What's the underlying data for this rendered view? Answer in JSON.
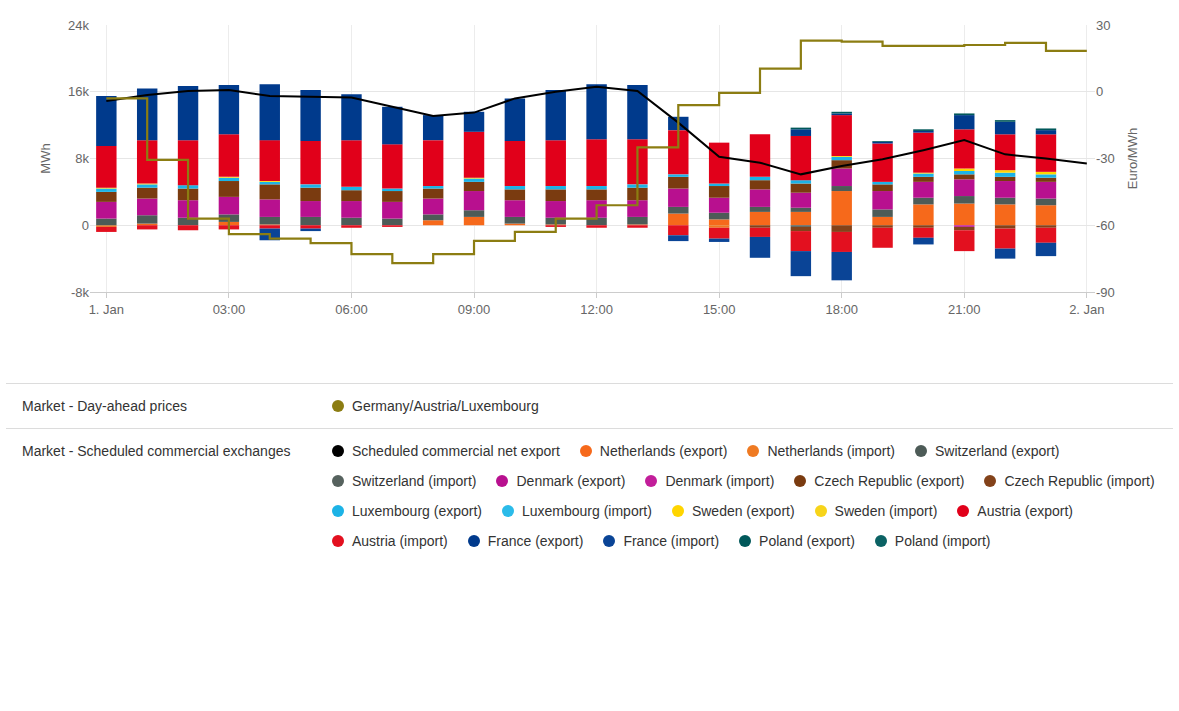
{
  "chart_data": {
    "type": "bar",
    "stacked": true,
    "grid": true,
    "legend": "bottom",
    "y_label": "MWh",
    "y2_label": "Euro/MWh",
    "x": [
      0,
      1,
      2,
      3,
      4,
      5,
      6,
      7,
      8,
      9,
      10,
      11,
      12,
      13,
      14,
      15,
      16,
      17,
      18,
      19,
      20,
      21,
      22,
      23
    ],
    "xlim": [
      -0.4,
      24.2
    ],
    "xticks": [
      {
        "value": 0,
        "label": "1. Jan"
      },
      {
        "value": 3,
        "label": "03:00"
      },
      {
        "value": 6,
        "label": "06:00"
      },
      {
        "value": 9,
        "label": "09:00"
      },
      {
        "value": 12,
        "label": "12:00"
      },
      {
        "value": 15,
        "label": "15:00"
      },
      {
        "value": 18,
        "label": "18:00"
      },
      {
        "value": 21,
        "label": "21:00"
      },
      {
        "value": 24,
        "label": "2. Jan"
      }
    ],
    "ylim": [
      -8000,
      24000
    ],
    "yticks": [
      {
        "value": -8000,
        "label": "-8k"
      },
      0,
      {
        "value": 8000,
        "label": "8k"
      },
      {
        "value": 16000,
        "label": "16k"
      },
      {
        "value": 24000,
        "label": "24k"
      }
    ],
    "y2lim": [
      -90,
      30
    ],
    "y2ticks": [
      -90,
      -60,
      -30,
      0,
      30
    ],
    "series": [
      {
        "name": "Germany/Austria/Luxembourg",
        "group": "Market - Day-ahead prices",
        "type": "line",
        "line_style": "step",
        "axis": "y2",
        "color": "#8c7d12",
        "bins": [
          0,
          1,
          2,
          3,
          4,
          5,
          6,
          7,
          8,
          9,
          10,
          11,
          12,
          13,
          14,
          15,
          16,
          17,
          18,
          19,
          20,
          21,
          22,
          23,
          24
        ],
        "values": [
          -3,
          -30.6,
          -57,
          -64,
          -66,
          -68,
          -73,
          -77,
          -73,
          -67,
          -63,
          -57,
          -51,
          -25,
          -6,
          -0.5,
          10.4,
          23,
          22.5,
          20.6,
          20.6,
          21,
          22,
          18.4
        ]
      },
      {
        "name": "Scheduled commercial net export",
        "group": "Market - Scheduled commercial exchanges",
        "type": "line",
        "line_style": "solid",
        "color": "#000000",
        "x": [
          0,
          1,
          2,
          3,
          4,
          5,
          6,
          7,
          8,
          9,
          10,
          11,
          12,
          13,
          14,
          15,
          16,
          17,
          18,
          19,
          20,
          21,
          22,
          23,
          24
        ],
        "values": [
          14900,
          15600,
          16100,
          16200,
          15500,
          15400,
          15300,
          14200,
          13100,
          13500,
          15200,
          16000,
          16600,
          16100,
          12300,
          8200,
          7500,
          6100,
          7100,
          7900,
          9000,
          10200,
          8500,
          8000,
          7400
        ]
      },
      {
        "name": "Netherlands (export)",
        "group": "Market - Scheduled commercial exchanges",
        "type": "bar",
        "color": "#f6691b",
        "values": [
          0,
          200,
          0,
          400,
          100,
          0,
          0,
          0,
          600,
          1000,
          200,
          100,
          0,
          100,
          1400,
          700,
          1600,
          1600,
          4100,
          1000,
          2500,
          2600,
          2500,
          2400
        ]
      },
      {
        "name": "Netherlands (import)",
        "group": "Market - Scheduled commercial exchanges",
        "type": "bar",
        "color": "#ef7a22",
        "values": [
          -200,
          0,
          0,
          0,
          0,
          0,
          0,
          0,
          0,
          0,
          0,
          0,
          0,
          0,
          0,
          -300,
          0,
          0,
          0,
          0,
          0,
          0,
          0,
          0
        ]
      },
      {
        "name": "Switzerland (export)",
        "group": "Market - Scheduled commercial exchanges",
        "type": "bar",
        "color": "#4d5b57",
        "values": [
          800,
          1000,
          900,
          900,
          900,
          1000,
          900,
          800,
          700,
          800,
          800,
          800,
          900,
          900,
          800,
          800,
          600,
          500,
          600,
          900,
          800,
          900,
          800,
          800
        ]
      },
      {
        "name": "Switzerland (import)",
        "group": "Market - Scheduled commercial exchanges",
        "type": "bar",
        "color": "#56625e",
        "values": [
          0,
          0,
          0,
          0,
          0,
          0,
          0,
          0,
          0,
          0,
          0,
          0,
          0,
          0,
          0,
          0,
          0,
          -200,
          0,
          0,
          0,
          0,
          0,
          0
        ]
      },
      {
        "name": "Denmark (export)",
        "group": "Market - Scheduled commercial exchanges",
        "type": "bar",
        "color": "#b8108f",
        "values": [
          2000,
          2000,
          2100,
          2100,
          2100,
          1900,
          2000,
          2000,
          1900,
          2300,
          2000,
          2000,
          2100,
          2000,
          2200,
          1800,
          2100,
          1800,
          2100,
          2200,
          1900,
          2000,
          2000,
          2000
        ]
      },
      {
        "name": "Denmark (import)",
        "group": "Market - Scheduled commercial exchanges",
        "type": "bar",
        "color": "#c21e9a",
        "values": [
          0,
          0,
          0,
          0,
          0,
          0,
          0,
          0,
          0,
          0,
          0,
          0,
          0,
          0,
          0,
          0,
          0,
          0,
          0,
          0,
          0,
          -200,
          0,
          0
        ]
      },
      {
        "name": "Czech Republic (export)",
        "group": "Market - Scheduled commercial exchanges",
        "type": "bar",
        "color": "#7a3b10",
        "values": [
          1200,
          1300,
          1400,
          1900,
          1800,
          1600,
          1300,
          1300,
          1200,
          1100,
          1300,
          1400,
          1300,
          1500,
          1400,
          1400,
          1100,
          1100,
          1000,
          800,
          600,
          600,
          500,
          500
        ]
      },
      {
        "name": "Czech Republic (import)",
        "group": "Market - Scheduled commercial exchanges",
        "type": "bar",
        "color": "#83421a",
        "values": [
          0,
          0,
          0,
          0,
          0,
          0,
          0,
          0,
          0,
          0,
          0,
          0,
          0,
          0,
          0,
          0,
          -300,
          -500,
          -800,
          -300,
          -300,
          -400,
          -400,
          -300
        ]
      },
      {
        "name": "Luxembourg (export)",
        "group": "Market - Scheduled commercial exchanges",
        "type": "bar",
        "color": "#1cb3e6",
        "values": [
          400,
          400,
          400,
          400,
          300,
          400,
          400,
          300,
          300,
          400,
          400,
          400,
          400,
          400,
          300,
          300,
          400,
          400,
          400,
          300,
          400,
          400,
          500,
          400
        ]
      },
      {
        "name": "Luxembourg (import)",
        "group": "Market - Scheduled commercial exchanges",
        "type": "bar",
        "color": "#2bbbe9",
        "values": [
          0,
          0,
          0,
          0,
          0,
          0,
          0,
          0,
          0,
          0,
          0,
          0,
          0,
          0,
          0,
          0,
          0,
          0,
          0,
          0,
          0,
          0,
          0,
          0
        ]
      },
      {
        "name": "Sweden (export)",
        "group": "Market - Scheduled commercial exchanges",
        "type": "bar",
        "color": "#ffd500",
        "values": [
          100,
          100,
          0,
          100,
          100,
          0,
          0,
          0,
          0,
          100,
          0,
          0,
          0,
          0,
          0,
          0,
          0,
          0,
          100,
          0,
          100,
          300,
          300,
          300
        ]
      },
      {
        "name": "Sweden (import)",
        "group": "Market - Scheduled commercial exchanges",
        "type": "bar",
        "color": "#f7d41a",
        "values": [
          0,
          0,
          0,
          0,
          0,
          0,
          0,
          0,
          0,
          0,
          0,
          0,
          0,
          0,
          0,
          0,
          0,
          0,
          0,
          0,
          0,
          0,
          0,
          0
        ]
      },
      {
        "name": "Austria (export)",
        "group": "Market - Scheduled commercial exchanges",
        "type": "bar",
        "color": "#e1001a",
        "values": [
          5000,
          5200,
          5400,
          5100,
          4900,
          5200,
          5600,
          5300,
          5500,
          5500,
          5400,
          5500,
          5600,
          5400,
          5300,
          4900,
          5100,
          5300,
          4900,
          4600,
          4800,
          4700,
          4300,
          4500
        ]
      },
      {
        "name": "Austria (import)",
        "group": "Market - Scheduled commercial exchanges",
        "type": "bar",
        "color": "#e3101f",
        "values": [
          -600,
          -500,
          -600,
          -500,
          -400,
          -400,
          -300,
          -200,
          0,
          0,
          0,
          -200,
          -300,
          -300,
          -1200,
          -1300,
          -1100,
          -2400,
          -2400,
          -2400,
          -1200,
          -2500,
          -2400,
          -1800
        ]
      },
      {
        "name": "France (export)",
        "group": "Market - Scheduled commercial exchanges",
        "type": "bar",
        "color": "#003a8c",
        "values": [
          6000,
          6200,
          6500,
          5900,
          6700,
          6100,
          5500,
          4500,
          3000,
          2400,
          5100,
          6000,
          6600,
          6500,
          1600,
          0,
          0,
          800,
          200,
          200,
          200,
          1700,
          1500,
          500
        ]
      },
      {
        "name": "France (import)",
        "group": "Market - Scheduled commercial exchanges",
        "type": "bar",
        "color": "#0a4496",
        "values": [
          0,
          0,
          0,
          0,
          -1400,
          -300,
          0,
          0,
          0,
          0,
          0,
          0,
          0,
          0,
          -700,
          -400,
          -2500,
          -3000,
          -3400,
          0,
          -800,
          0,
          -1200,
          -1600
        ]
      },
      {
        "name": "Poland (export)",
        "group": "Market - Scheduled commercial exchanges",
        "type": "bar",
        "color": "#00585a",
        "values": [
          0,
          0,
          0,
          0,
          0,
          0,
          0,
          0,
          0,
          0,
          0,
          0,
          0,
          0,
          0,
          0,
          0,
          200,
          200,
          100,
          200,
          200,
          200,
          200
        ]
      },
      {
        "name": "Poland (import)",
        "group": "Market - Scheduled commercial exchanges",
        "type": "bar",
        "color": "#0b6264",
        "values": [
          0,
          0,
          0,
          0,
          0,
          0,
          0,
          0,
          0,
          0,
          0,
          0,
          0,
          0,
          0,
          0,
          0,
          0,
          0,
          0,
          0,
          0,
          0,
          0
        ]
      }
    ]
  }
}
